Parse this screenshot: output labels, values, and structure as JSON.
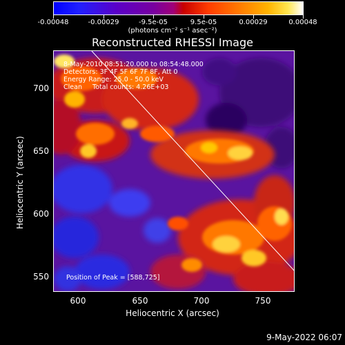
{
  "colorbar": {
    "tick_labels": [
      "-0.00048",
      "-0.00029",
      "-9.5e-05",
      "9.5e-05",
      "0.00029",
      "0.00048"
    ],
    "units": "(photons cm⁻² s⁻¹ asec⁻²)"
  },
  "title": "Reconstructed RHESSI Image",
  "info": {
    "line1": "8-May-2010 08:51:20.000 to 08:54:48.000",
    "line2": "Detectors: 3F 4F 5F 6F 7F 8F, Att 0",
    "line3": "Energy Range: 25.0 - 50.0 keV",
    "line4": "Clean     Total counts: 4.26E+03"
  },
  "peak_text": "Position of Peak = [588,725]",
  "axes": {
    "xlabel": "Heliocentric X (arcsec)",
    "ylabel": "Heliocentric Y (arcsec)",
    "xticks": [
      "600",
      "650",
      "700",
      "750"
    ],
    "yticks": [
      "700",
      "650",
      "600",
      "550"
    ]
  },
  "timestamp": "9-May-2022 06:07"
}
